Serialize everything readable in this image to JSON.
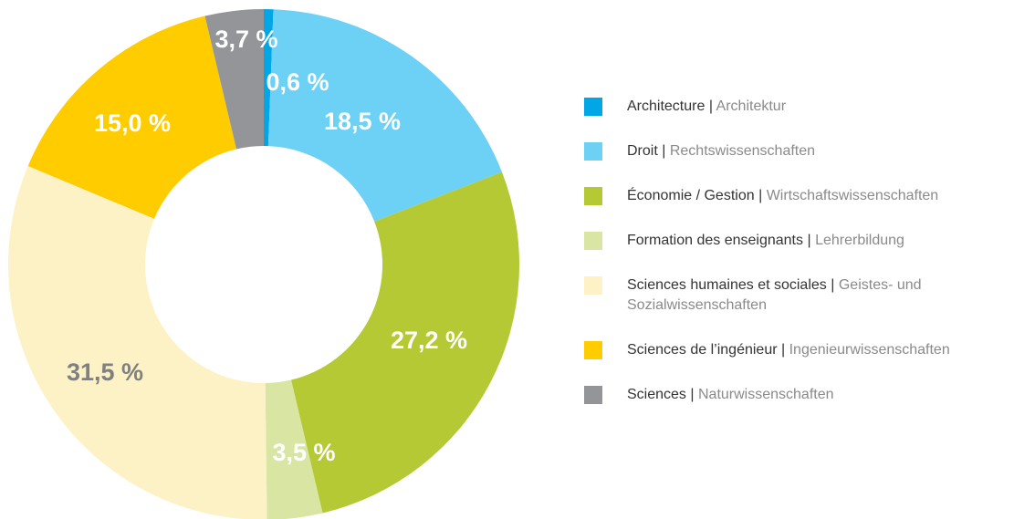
{
  "chart_data": {
    "type": "donut",
    "categories": [
      [
        "Architecture",
        "|",
        "Architektur"
      ],
      [
        "Droit",
        "|",
        "Rechtswissenschaften"
      ],
      [
        "Économie / Gestion",
        "|",
        "Wirtschaftswissenschaften"
      ],
      [
        "Formation des enseignants",
        "|",
        "Lehrerbildung"
      ],
      [
        "Sciences humaines et sociales",
        "|",
        "Geistes- und Sozialwissenschaften"
      ],
      [
        "Sciences de l’ingénieur",
        "|",
        "Ingenieurwissenschaften"
      ],
      [
        "Sciences",
        "|",
        "Naturwissenschaften"
      ]
    ],
    "values": [
      0.6,
      18.5,
      27.2,
      3.5,
      31.5,
      15.0,
      3.7
    ],
    "value_labels": [
      "0,6 %",
      "18,5 %",
      "27,2 %",
      "3,5 %",
      "31,5 %",
      "15,0 %",
      "3,7 %"
    ],
    "colors": [
      "#00a6e6",
      "#6dd0f5",
      "#b5c935",
      "#d9e5a3",
      "#fdf2c6",
      "#ffcc00",
      "#939598"
    ],
    "label_colors": [
      "#ffffff",
      "#ffffff",
      "#ffffff",
      "#ffffff",
      "#808080",
      "#ffffff",
      "#ffffff"
    ]
  }
}
